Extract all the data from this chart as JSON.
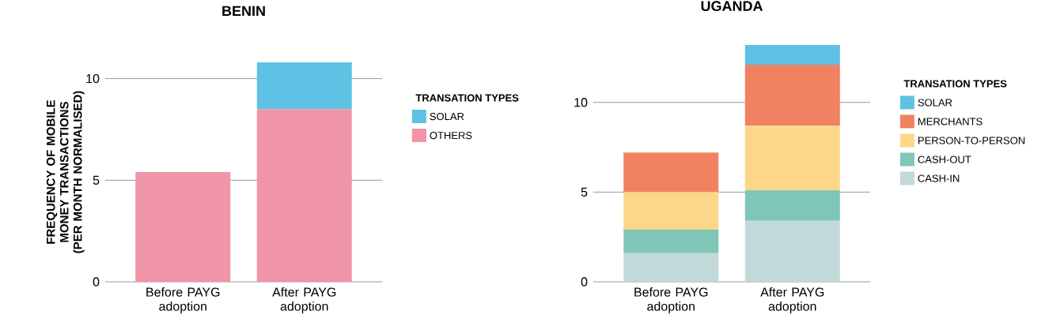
{
  "chart_data": [
    {
      "type": "bar",
      "title": "BENIN",
      "ylabel": "FREQUENCY OF MOBILE MONEY TRANSACTIONS (PER MONTH NORMALISED)",
      "legend_title": "TRANSATION TYPES",
      "categories": [
        "Before PAYG adoption",
        "After PAYG adoption"
      ],
      "stacked": true,
      "ylim": [
        0,
        10.8
      ],
      "yticks": [
        0,
        5,
        10
      ],
      "grid": "y",
      "legend": "right",
      "series": [
        {
          "name": "OTHERS",
          "color": "#f094a7",
          "values": [
            5.4,
            8.5
          ]
        },
        {
          "name": "SOLAR",
          "color": "#5fc1e3",
          "values": [
            0,
            2.3
          ]
        }
      ]
    },
    {
      "type": "bar",
      "title": "UGANDA",
      "legend_title": "TRANSATION TYPES",
      "categories": [
        "Before PAYG adoption",
        "After PAYG adoption"
      ],
      "stacked": true,
      "ylim": [
        0,
        13.2
      ],
      "yticks": [
        0,
        5,
        10
      ],
      "grid": "y",
      "legend": "right",
      "series": [
        {
          "name": "CASH-IN",
          "color": "#c1d9d9",
          "values": [
            1.6,
            3.4
          ]
        },
        {
          "name": "CASH-OUT",
          "color": "#7fc6b6",
          "values": [
            1.3,
            1.7
          ]
        },
        {
          "name": "PERSON-TO-PERSON",
          "color": "#fdd68a",
          "values": [
            2.1,
            3.6
          ]
        },
        {
          "name": "MERCHANTS",
          "color": "#f08262",
          "values": [
            2.2,
            3.4
          ]
        },
        {
          "name": "SOLAR",
          "color": "#5fc1e3",
          "values": [
            0,
            1.1
          ]
        }
      ]
    }
  ]
}
